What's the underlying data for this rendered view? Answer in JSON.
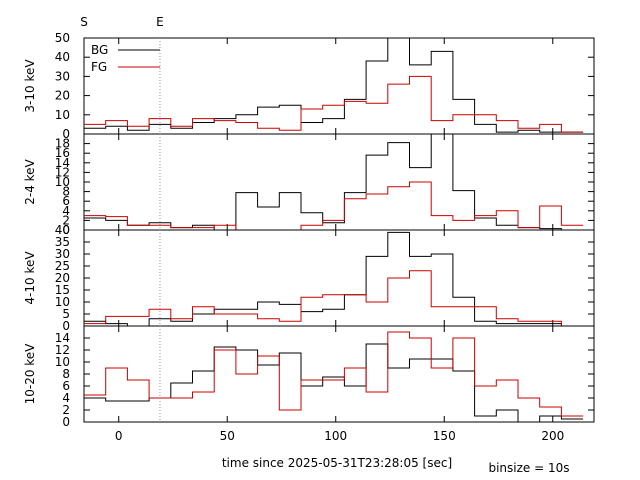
{
  "chart_data": {
    "type": "line",
    "xlabel": "time since 2025-05-31T23:28:05 [sec]",
    "note": "binsize = 10s",
    "xlim": [
      -16,
      219
    ],
    "xticks": [
      0,
      50,
      100,
      150,
      200
    ],
    "markers": [
      {
        "label": "S",
        "x": -16,
        "line": false
      },
      {
        "label": "E",
        "x": 19,
        "line": true
      }
    ],
    "colors": {
      "BG": "#000000",
      "FG": "#cc0000",
      "marker": "#999999"
    },
    "bins": [
      -16,
      -6,
      4,
      14,
      24,
      34,
      44,
      54,
      64,
      74,
      84,
      94,
      104,
      114,
      124,
      134,
      144,
      154,
      164,
      174,
      184,
      194,
      204,
      214
    ],
    "panels": [
      {
        "ylabel": "3-10 keV",
        "ylim": [
          0,
          50
        ],
        "yticks": [
          0,
          10,
          20,
          30,
          40,
          50
        ],
        "show_legend": true,
        "series": [
          {
            "name": "BG",
            "values": [
              3,
              4,
              2,
              5,
              3,
              6,
              8,
              10,
              14,
              15,
              6,
              8,
              18,
              38,
              50,
              36,
              43,
              18,
              5,
              1,
              2,
              1,
              1
            ]
          },
          {
            "name": "FG",
            "values": [
              5,
              7,
              4,
              8,
              4,
              8,
              7,
              6,
              3,
              2,
              13,
              15,
              17,
              16,
              26,
              30,
              7,
              10,
              10,
              7,
              3,
              5,
              1
            ]
          }
        ]
      },
      {
        "ylabel": "2-4 keV",
        "ylim": [
          0,
          20
        ],
        "yticks": [
          0,
          2,
          4,
          6,
          8,
          10,
          12,
          14,
          16,
          18
        ],
        "show_legend": false,
        "series": [
          {
            "name": "BG",
            "values": [
              2.5,
              2,
              1,
              1.5,
              0.5,
              1,
              0,
              7.8,
              4.8,
              7.8,
              3.6,
              1.5,
              7.8,
              15.6,
              18.2,
              13,
              20,
              8.2,
              2.5,
              1,
              0.5,
              0.3,
              0
            ]
          },
          {
            "name": "FG",
            "values": [
              3,
              2.8,
              1,
              1,
              0.5,
              0.5,
              1,
              0,
              0,
              0,
              1,
              2,
              6.5,
              7.5,
              9,
              10,
              3,
              2,
              3,
              4,
              0.5,
              5,
              1
            ]
          }
        ]
      },
      {
        "ylabel": "4-10 keV",
        "ylim": [
          0,
          40
        ],
        "yticks": [
          0,
          5,
          10,
          15,
          20,
          25,
          30,
          35,
          40
        ],
        "show_legend": false,
        "series": [
          {
            "name": "BG",
            "values": [
              2,
              1,
              0,
              3,
              2,
              5,
              7,
              7,
              10,
              9,
              6,
              7,
              13,
              29,
              39,
              29,
              30,
              12,
              2,
              1,
              1,
              1,
              0
            ]
          },
          {
            "name": "FG",
            "values": [
              1,
              4,
              4,
              7,
              3,
              8,
              5,
              5,
              3,
              2,
              12,
              13,
              13,
              10,
              20,
              23,
              8,
              8,
              8,
              3,
              2,
              2,
              0
            ]
          }
        ]
      },
      {
        "ylabel": "10-20 keV",
        "ylim": [
          0,
          16
        ],
        "yticks": [
          0,
          2,
          4,
          6,
          8,
          10,
          12,
          14
        ],
        "show_legend": false,
        "series": [
          {
            "name": "BG",
            "values": [
              4,
              3.5,
              3.5,
              4,
              6.5,
              8.5,
              12.5,
              12,
              9.5,
              11.5,
              6,
              7.5,
              6,
              13,
              9,
              10.5,
              10.5,
              8.5,
              1,
              2,
              0,
              1,
              0.5
            ]
          },
          {
            "name": "FG",
            "values": [
              4.5,
              9,
              7,
              4,
              4,
              5,
              12,
              8,
              11,
              2,
              7,
              7,
              9,
              5,
              15,
              14,
              9,
              14,
              6,
              7,
              4,
              2.5,
              1
            ]
          }
        ]
      }
    ]
  }
}
